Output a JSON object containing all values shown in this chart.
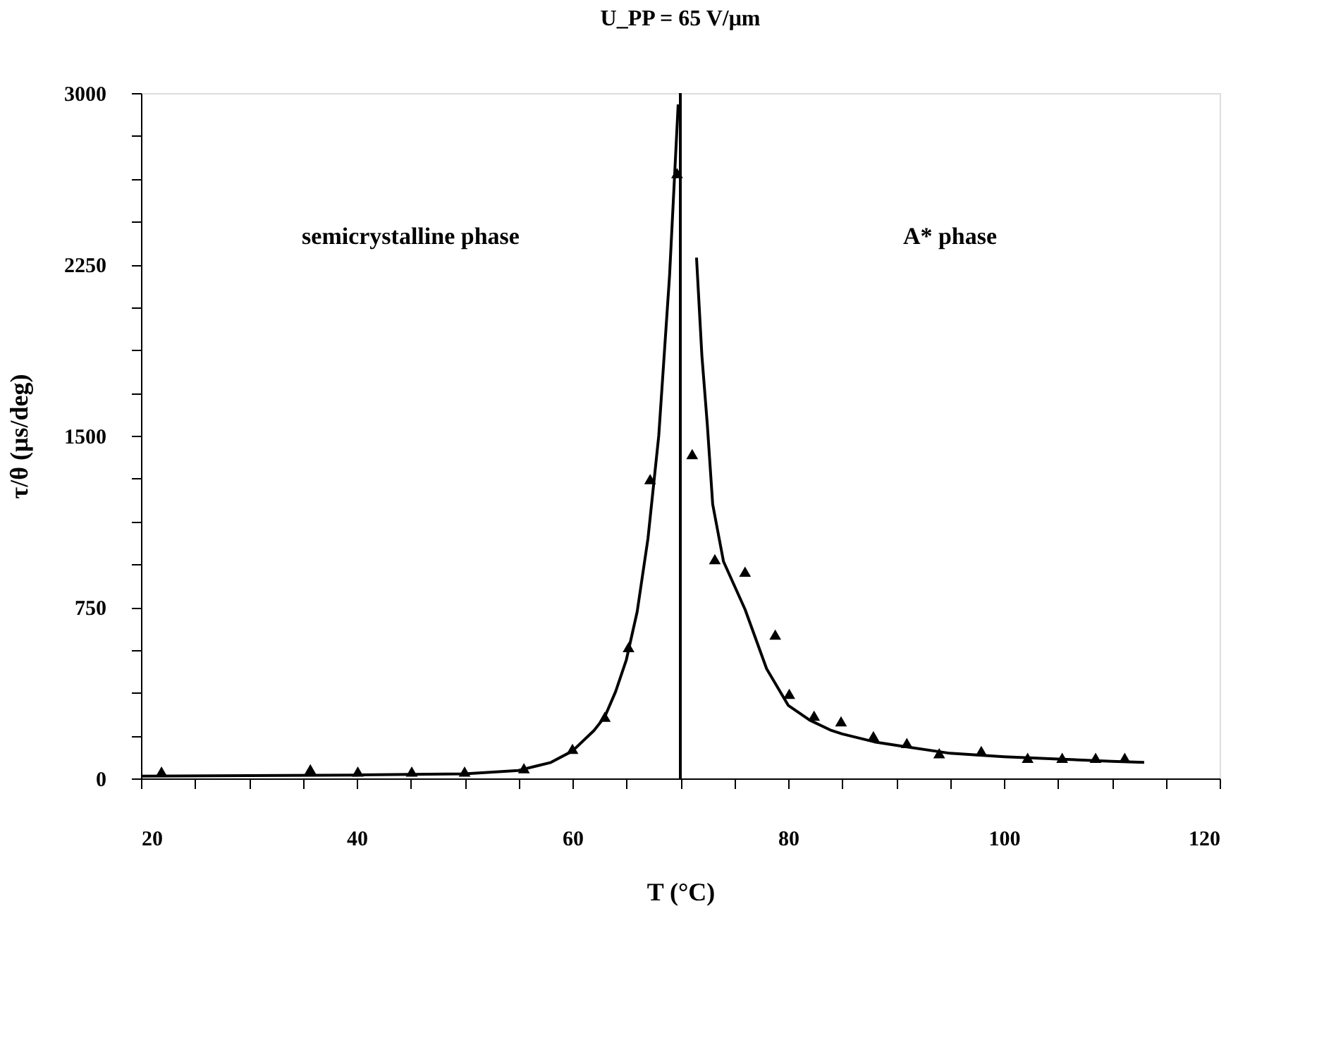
{
  "chart_data": {
    "type": "scatter",
    "title": "U_PP = 65 V/μm",
    "xlabel": "T (°C)",
    "ylabel": "τ/θ  (μs/deg)",
    "xlim": [
      20,
      120
    ],
    "ylim": [
      0,
      3000
    ],
    "xticks": [
      20,
      {
        "value": 25,
        "label": null
      },
      {
        "value": 30,
        "label": null
      },
      {
        "value": 35,
        "label": null
      },
      40,
      {
        "value": 45,
        "label": null
      },
      {
        "value": 50,
        "label": null
      },
      {
        "value": 55,
        "label": null
      },
      60,
      {
        "value": 65,
        "label": null
      },
      {
        "value": 70,
        "label": null
      },
      {
        "value": 75,
        "label": null
      },
      80,
      {
        "value": 85,
        "label": null
      },
      {
        "value": 90,
        "label": null
      },
      {
        "value": 95,
        "label": null
      },
      100,
      {
        "value": 105,
        "label": null
      },
      {
        "value": 110,
        "label": null
      },
      {
        "value": 115,
        "label": null
      },
      120
    ],
    "yticks": [
      0,
      {
        "value": 187.5,
        "label": null
      },
      {
        "value": 375,
        "label": null
      },
      {
        "value": 562.5,
        "label": null
      },
      750,
      {
        "value": 937.5,
        "label": null
      },
      {
        "value": 1125,
        "label": null
      },
      {
        "value": 1312.5,
        "label": null
      },
      1500,
      {
        "value": 1687.5,
        "label": null
      },
      {
        "value": 1875,
        "label": null
      },
      {
        "value": 2062.5,
        "label": null
      },
      2250,
      {
        "value": 2437.5,
        "label": null
      },
      {
        "value": 2625,
        "label": null
      },
      {
        "value": 2812.5,
        "label": null
      },
      3000
    ],
    "grid": false,
    "series": [
      {
        "marker": "triangle",
        "color": "#000000",
        "x": [
          21.9,
          35.7,
          40.1,
          45.1,
          50.0,
          55.5,
          60.0,
          63.0,
          65.2,
          67.2,
          69.7,
          71.1,
          73.2,
          76.0,
          78.8,
          80.1,
          82.4,
          84.9,
          87.9,
          91.0,
          94.0,
          97.9,
          102.2,
          105.4,
          108.5,
          111.2
        ],
        "values": [
          30,
          40,
          30,
          30,
          30,
          45,
          130,
          270,
          575,
          1310,
          2650,
          1420,
          960,
          905,
          630,
          370,
          275,
          250,
          185,
          155,
          110,
          120,
          90,
          90,
          90,
          90
        ]
      },
      {
        "type": "line",
        "line_style": "solid",
        "color": "#000000",
        "x": [
          20,
          30,
          40,
          50,
          55,
          58,
          60,
          62,
          63,
          64,
          65,
          66,
          67,
          68,
          69,
          69.8
        ],
        "values": [
          10,
          12,
          15,
          20,
          35,
          70,
          120,
          210,
          270,
          380,
          520,
          730,
          1050,
          1500,
          2200,
          2950
        ]
      },
      {
        "type": "line",
        "line_style": "solid",
        "color": "#000000",
        "x": [
          71.5,
          72,
          72.5,
          73,
          74,
          76,
          78,
          80,
          82,
          84,
          85,
          88,
          90,
          95,
          100,
          105,
          110,
          113
        ],
        "values": [
          2280,
          1850,
          1550,
          1200,
          950,
          740,
          480,
          320,
          255,
          210,
          195,
          160,
          145,
          110,
          95,
          85,
          75,
          70
        ]
      }
    ],
    "ref_lines": [
      {
        "axis": "x",
        "value": 70,
        "color": "#000000",
        "line_style": "solid"
      }
    ],
    "annotations": [
      "semicrystalline phase",
      "A* phase"
    ]
  }
}
